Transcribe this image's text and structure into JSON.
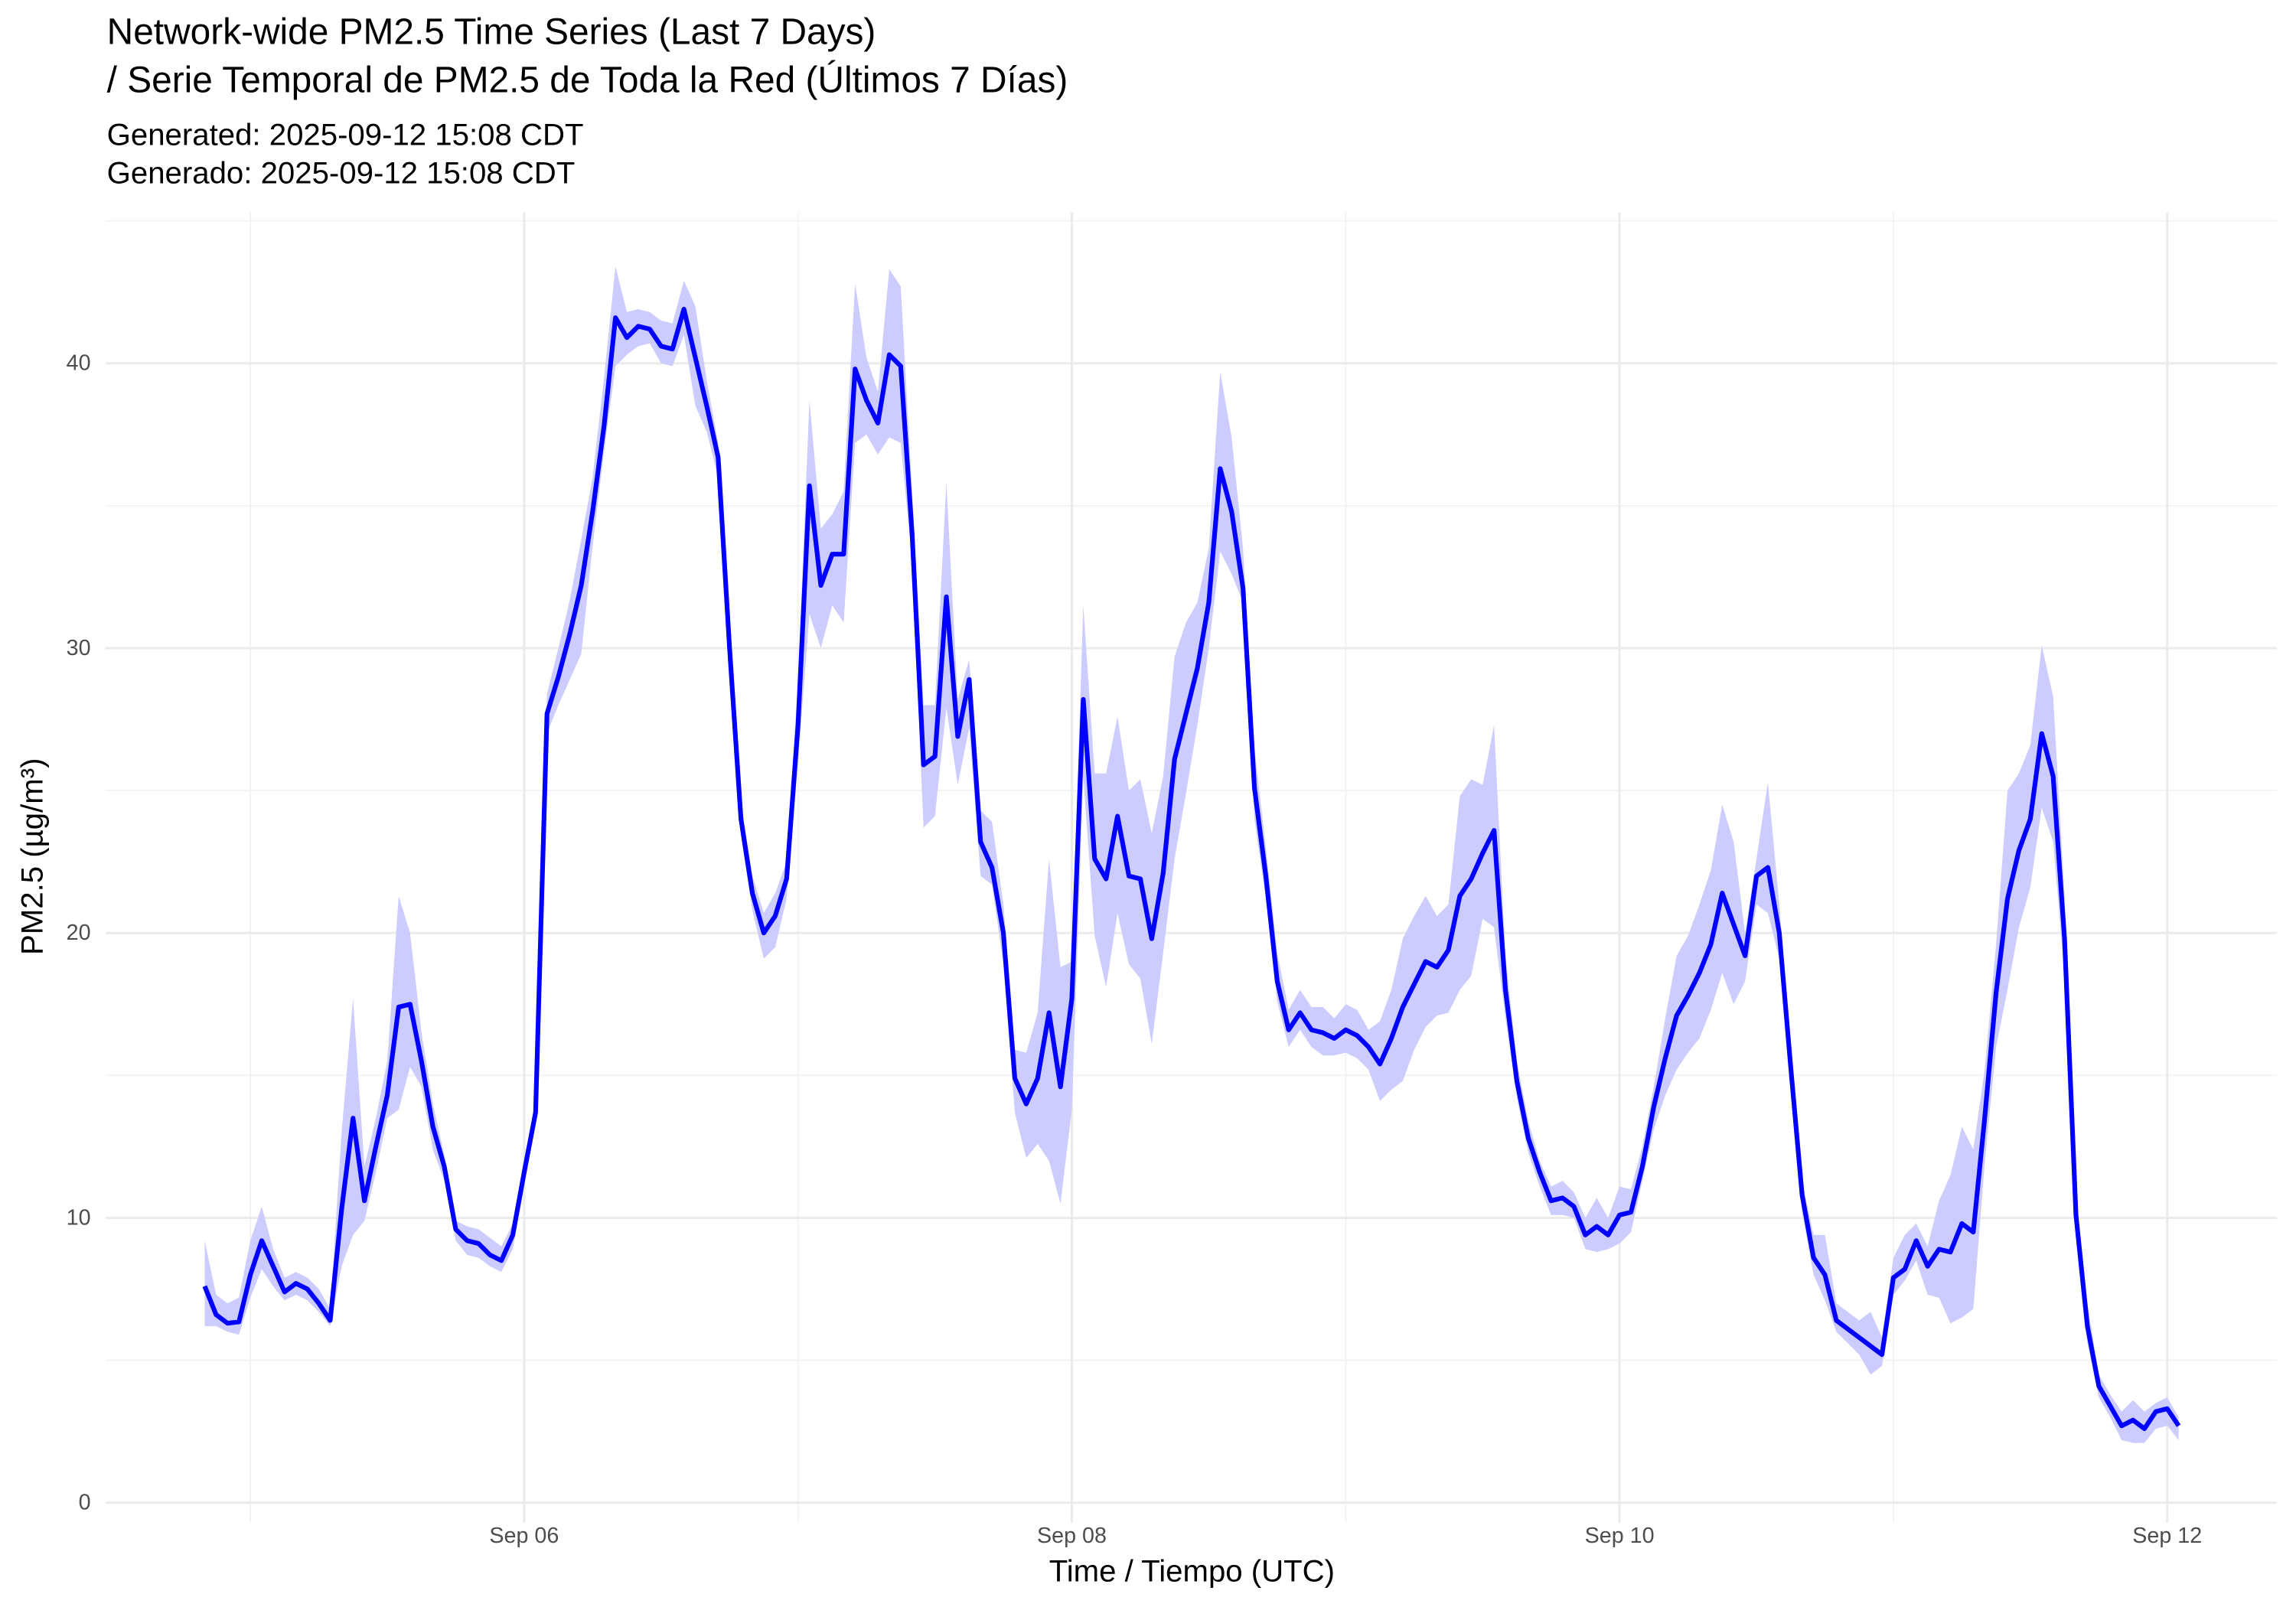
{
  "chart_data": {
    "type": "line",
    "title": [
      "Network-wide PM2.5 Time Series (Last 7 Days)",
      "/ Serie Temporal de PM2.5 de Toda la Red (Últimos 7 Días)"
    ],
    "subtitle": [
      "Generated: 2025-09-12 15:08 CDT",
      "Generado: 2025-09-12 15:08 CDT"
    ],
    "x_label": "Time / Tiempo (UTC)",
    "y_label": "PM2.5 (µg/m³)",
    "color": "#0000ff",
    "band_color": "#ccccff",
    "grid": true,
    "xlim": [
      "2025-09-04T11:18Z",
      "2025-09-12T09:37Z"
    ],
    "xticks": [
      {
        "value": "2025-09-06T00:00Z",
        "label": "Sep 06"
      },
      {
        "value": "2025-09-08T00:00Z",
        "label": "Sep 08"
      },
      {
        "value": "2025-09-10T00:00Z",
        "label": "Sep 10"
      },
      {
        "value": "2025-09-12T00:00Z",
        "label": "Sep 12"
      }
    ],
    "ylim": [
      -0.7,
      45.3
    ],
    "yticks": [
      0,
      10,
      20,
      30,
      40
    ],
    "x": [
      "2025-09-04T20:00Z",
      "2025-09-04T21:00Z",
      "2025-09-04T22:00Z",
      "2025-09-04T23:00Z",
      "2025-09-05T00:00Z",
      "2025-09-05T01:00Z",
      "2025-09-05T02:00Z",
      "2025-09-05T03:00Z",
      "2025-09-05T04:00Z",
      "2025-09-05T05:00Z",
      "2025-09-05T06:00Z",
      "2025-09-05T07:00Z",
      "2025-09-05T08:00Z",
      "2025-09-05T09:00Z",
      "2025-09-05T10:00Z",
      "2025-09-05T11:00Z",
      "2025-09-05T12:00Z",
      "2025-09-05T13:00Z",
      "2025-09-05T14:00Z",
      "2025-09-05T15:00Z",
      "2025-09-05T16:00Z",
      "2025-09-05T17:00Z",
      "2025-09-05T18:00Z",
      "2025-09-05T19:00Z",
      "2025-09-05T20:00Z",
      "2025-09-05T21:00Z",
      "2025-09-05T22:00Z",
      "2025-09-05T23:00Z",
      "2025-09-06T00:00Z",
      "2025-09-06T01:00Z",
      "2025-09-06T02:00Z",
      "2025-09-06T03:00Z",
      "2025-09-06T04:00Z",
      "2025-09-06T05:00Z",
      "2025-09-06T06:00Z",
      "2025-09-06T07:00Z",
      "2025-09-06T08:00Z",
      "2025-09-06T09:00Z",
      "2025-09-06T10:00Z",
      "2025-09-06T11:00Z",
      "2025-09-06T12:00Z",
      "2025-09-06T13:00Z",
      "2025-09-06T14:00Z",
      "2025-09-06T15:00Z",
      "2025-09-06T16:00Z",
      "2025-09-06T17:00Z",
      "2025-09-06T18:00Z",
      "2025-09-06T19:00Z",
      "2025-09-06T20:00Z",
      "2025-09-06T21:00Z",
      "2025-09-06T22:00Z",
      "2025-09-06T23:00Z",
      "2025-09-07T00:00Z",
      "2025-09-07T01:00Z",
      "2025-09-07T02:00Z",
      "2025-09-07T03:00Z",
      "2025-09-07T04:00Z",
      "2025-09-07T05:00Z",
      "2025-09-07T06:00Z",
      "2025-09-07T07:00Z",
      "2025-09-07T08:00Z",
      "2025-09-07T09:00Z",
      "2025-09-07T10:00Z",
      "2025-09-07T11:00Z",
      "2025-09-07T12:00Z",
      "2025-09-07T13:00Z",
      "2025-09-07T14:00Z",
      "2025-09-07T15:00Z",
      "2025-09-07T16:00Z",
      "2025-09-07T17:00Z",
      "2025-09-07T18:00Z",
      "2025-09-07T19:00Z",
      "2025-09-07T20:00Z",
      "2025-09-07T21:00Z",
      "2025-09-07T22:00Z",
      "2025-09-07T23:00Z",
      "2025-09-08T00:00Z",
      "2025-09-08T01:00Z",
      "2025-09-08T02:00Z",
      "2025-09-08T03:00Z",
      "2025-09-08T04:00Z",
      "2025-09-08T05:00Z",
      "2025-09-08T06:00Z",
      "2025-09-08T07:00Z",
      "2025-09-08T08:00Z",
      "2025-09-08T09:00Z",
      "2025-09-08T10:00Z",
      "2025-09-08T11:00Z",
      "2025-09-08T12:00Z",
      "2025-09-08T13:00Z",
      "2025-09-08T14:00Z",
      "2025-09-08T15:00Z",
      "2025-09-08T16:00Z",
      "2025-09-08T17:00Z",
      "2025-09-08T18:00Z",
      "2025-09-08T19:00Z",
      "2025-09-08T20:00Z",
      "2025-09-08T21:00Z",
      "2025-09-08T22:00Z",
      "2025-09-08T23:00Z",
      "2025-09-09T00:00Z",
      "2025-09-09T01:00Z",
      "2025-09-09T02:00Z",
      "2025-09-09T03:00Z",
      "2025-09-09T04:00Z",
      "2025-09-09T05:00Z",
      "2025-09-09T06:00Z",
      "2025-09-09T07:00Z",
      "2025-09-09T08:00Z",
      "2025-09-09T09:00Z",
      "2025-09-09T10:00Z",
      "2025-09-09T11:00Z",
      "2025-09-09T12:00Z",
      "2025-09-09T13:00Z",
      "2025-09-09T14:00Z",
      "2025-09-09T15:00Z",
      "2025-09-09T16:00Z",
      "2025-09-09T17:00Z",
      "2025-09-09T18:00Z",
      "2025-09-09T19:00Z",
      "2025-09-09T20:00Z",
      "2025-09-09T21:00Z",
      "2025-09-09T22:00Z",
      "2025-09-09T23:00Z",
      "2025-09-10T00:00Z",
      "2025-09-10T01:00Z",
      "2025-09-10T02:00Z",
      "2025-09-10T03:00Z",
      "2025-09-10T04:00Z",
      "2025-09-10T05:00Z",
      "2025-09-10T06:00Z",
      "2025-09-10T07:00Z",
      "2025-09-10T08:00Z",
      "2025-09-10T09:00Z",
      "2025-09-10T10:00Z",
      "2025-09-10T11:00Z",
      "2025-09-10T12:00Z",
      "2025-09-10T13:00Z",
      "2025-09-10T14:00Z",
      "2025-09-10T15:00Z",
      "2025-09-10T16:00Z",
      "2025-09-10T17:00Z",
      "2025-09-10T18:00Z",
      "2025-09-10T19:00Z",
      "2025-09-10T20:00Z",
      "2025-09-10T21:00Z",
      "2025-09-10T22:00Z",
      "2025-09-10T23:00Z",
      "2025-09-11T00:00Z",
      "2025-09-11T01:00Z",
      "2025-09-11T02:00Z",
      "2025-09-11T03:00Z",
      "2025-09-11T04:00Z",
      "2025-09-11T05:00Z",
      "2025-09-11T06:00Z",
      "2025-09-11T07:00Z",
      "2025-09-11T08:00Z",
      "2025-09-11T09:00Z",
      "2025-09-11T10:00Z",
      "2025-09-11T11:00Z",
      "2025-09-11T12:00Z",
      "2025-09-11T13:00Z",
      "2025-09-11T14:00Z",
      "2025-09-11T15:00Z",
      "2025-09-11T16:00Z",
      "2025-09-11T17:00Z",
      "2025-09-11T18:00Z",
      "2025-09-11T19:00Z",
      "2025-09-11T20:00Z",
      "2025-09-11T21:00Z",
      "2025-09-11T22:00Z",
      "2025-09-11T23:00Z",
      "2025-09-12T00:00Z",
      "2025-09-12T01:00Z"
    ],
    "values": [
      7.6,
      6.6,
      6.3,
      6.35,
      8.0,
      9.2,
      8.3,
      7.4,
      7.7,
      7.5,
      7.0,
      6.4,
      10.3,
      13.5,
      10.6,
      12.5,
      14.3,
      17.4,
      17.5,
      15.5,
      13.2,
      11.8,
      9.6,
      9.2,
      9.1,
      8.7,
      8.5,
      9.4,
      11.6,
      13.7,
      27.7,
      29.0,
      30.5,
      32.2,
      34.8,
      37.8,
      41.6,
      40.9,
      41.3,
      41.2,
      40.6,
      40.5,
      41.9,
      40.2,
      38.5,
      36.7,
      30.0,
      24.0,
      21.4,
      20.0,
      20.6,
      21.9,
      27.3,
      35.7,
      32.2,
      33.3,
      33.3,
      39.8,
      38.7,
      37.9,
      40.3,
      39.9,
      34.0,
      25.9,
      26.2,
      31.8,
      26.9,
      28.9,
      23.2,
      22.3,
      20.0,
      14.9,
      14.0,
      14.9,
      17.2,
      14.6,
      17.7,
      28.2,
      22.6,
      21.9,
      24.1,
      22.0,
      21.9,
      19.8,
      22.1,
      26.1,
      27.7,
      29.3,
      31.6,
      36.3,
      34.8,
      32.1,
      25.1,
      22.0,
      18.3,
      16.6,
      17.2,
      16.6,
      16.5,
      16.3,
      16.6,
      16.4,
      16.0,
      15.4,
      16.3,
      17.4,
      18.2,
      19.0,
      18.8,
      19.4,
      21.3,
      21.9,
      22.8,
      23.6,
      18.0,
      14.8,
      12.8,
      11.6,
      10.6,
      10.7,
      10.4,
      9.4,
      9.7,
      9.4,
      10.1,
      10.2,
      11.8,
      13.9,
      15.6,
      17.1,
      17.8,
      18.6,
      19.6,
      21.4,
      20.3,
      19.2,
      22.0,
      22.3,
      20.0,
      15.3,
      10.8,
      8.6,
      8.0,
      6.4,
      6.1,
      5.8,
      5.5,
      5.2,
      7.9,
      8.2,
      9.2,
      8.3,
      8.9,
      8.8,
      9.8,
      9.5,
      13.5,
      17.9,
      21.2,
      22.9,
      24.0,
      27.0,
      25.5,
      19.8,
      10.1,
      6.2,
      4.1,
      3.4,
      2.7,
      2.9,
      2.6,
      3.2,
      3.3,
      2.7
    ],
    "upper": [
      9.2,
      7.3,
      7.0,
      7.2,
      9.2,
      10.4,
      8.9,
      7.9,
      8.1,
      7.9,
      7.5,
      6.8,
      13.0,
      17.7,
      11.8,
      13.5,
      15.5,
      21.3,
      20.0,
      16.5,
      14.0,
      12.2,
      9.9,
      9.7,
      9.6,
      9.3,
      9.0,
      9.8,
      12.1,
      14.0,
      28.4,
      30.0,
      31.7,
      33.8,
      36.0,
      39.5,
      43.4,
      41.8,
      41.9,
      41.8,
      41.5,
      41.4,
      42.9,
      42.0,
      39.4,
      37.2,
      31.0,
      24.6,
      22.0,
      20.7,
      21.4,
      22.5,
      28.9,
      38.7,
      34.2,
      34.7,
      35.5,
      42.8,
      40.2,
      39.0,
      43.3,
      42.7,
      35.5,
      28.0,
      28.0,
      35.8,
      28.2,
      29.6,
      24.3,
      23.9,
      21.0,
      15.9,
      15.8,
      17.2,
      22.6,
      18.8,
      19.0,
      31.5,
      25.6,
      25.6,
      27.6,
      25.0,
      25.4,
      23.5,
      25.5,
      29.7,
      30.9,
      31.6,
      33.5,
      39.7,
      37.4,
      33.5,
      26.5,
      23.0,
      19.3,
      17.3,
      18.0,
      17.4,
      17.4,
      17.0,
      17.5,
      17.3,
      16.6,
      16.9,
      18.0,
      19.8,
      20.6,
      21.3,
      20.6,
      21.0,
      24.8,
      25.4,
      25.2,
      27.3,
      19.2,
      15.5,
      13.4,
      12.0,
      11.1,
      11.3,
      10.9,
      10.0,
      10.7,
      10.0,
      11.1,
      11.0,
      12.5,
      14.6,
      17.0,
      19.2,
      19.9,
      21.0,
      22.2,
      24.5,
      23.2,
      20.0,
      22.6,
      25.3,
      21.0,
      16.0,
      11.3,
      9.4,
      9.4,
      7.0,
      6.7,
      6.4,
      6.7,
      5.8,
      8.6,
      9.4,
      9.8,
      9.0,
      10.6,
      11.5,
      13.2,
      12.4,
      15.2,
      19.6,
      25.0,
      25.6,
      26.6,
      30.1,
      28.3,
      21.3,
      10.8,
      7.0,
      4.5,
      3.8,
      3.2,
      3.6,
      3.2,
      3.5,
      3.7,
      3.0
    ],
    "lower": [
      6.2,
      6.2,
      6.0,
      5.9,
      7.2,
      8.2,
      7.6,
      7.1,
      7.3,
      7.1,
      6.7,
      6.2,
      8.3,
      9.4,
      9.9,
      11.6,
      13.5,
      13.8,
      15.3,
      14.6,
      12.4,
      11.3,
      9.2,
      8.7,
      8.6,
      8.3,
      8.1,
      8.9,
      11.1,
      13.3,
      27.0,
      28.0,
      28.9,
      29.8,
      33.6,
      36.9,
      39.9,
      40.3,
      40.6,
      40.7,
      40.0,
      39.9,
      41.0,
      38.5,
      37.6,
      36.0,
      29.0,
      23.4,
      20.8,
      19.1,
      19.5,
      21.2,
      26.0,
      31.2,
      30.0,
      31.5,
      30.9,
      37.2,
      37.5,
      36.8,
      37.4,
      37.2,
      33.0,
      23.7,
      24.1,
      27.9,
      25.2,
      27.2,
      22.0,
      21.7,
      18.9,
      13.7,
      12.1,
      12.6,
      12.0,
      10.5,
      13.8,
      25.5,
      19.9,
      18.1,
      20.7,
      18.9,
      18.4,
      16.1,
      19.3,
      22.6,
      24.9,
      27.3,
      30.0,
      33.4,
      32.6,
      31.6,
      24.0,
      21.2,
      17.6,
      16.0,
      16.6,
      16.0,
      15.7,
      15.7,
      15.8,
      15.6,
      15.2,
      14.1,
      14.5,
      14.8,
      15.9,
      16.7,
      17.1,
      17.2,
      18.0,
      18.5,
      20.5,
      20.2,
      17.0,
      14.2,
      12.3,
      11.1,
      10.1,
      10.1,
      10.0,
      8.9,
      8.8,
      8.9,
      9.1,
      9.5,
      11.3,
      13.1,
      14.3,
      15.2,
      15.8,
      16.3,
      17.3,
      18.6,
      17.5,
      18.3,
      21.0,
      20.7,
      19.1,
      14.4,
      10.2,
      8.0,
      7.1,
      6.0,
      5.6,
      5.2,
      4.5,
      4.8,
      7.3,
      7.8,
      8.5,
      7.3,
      7.2,
      6.3,
      6.5,
      6.8,
      11.9,
      16.0,
      18.0,
      20.2,
      21.6,
      24.4,
      23.2,
      18.5,
      9.4,
      5.6,
      3.7,
      3.0,
      2.2,
      2.1,
      2.1,
      2.6,
      2.7,
      2.2
    ]
  }
}
